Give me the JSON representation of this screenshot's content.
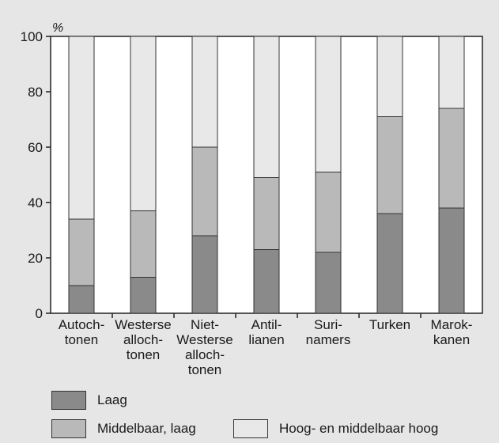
{
  "chart_data": {
    "type": "bar",
    "stacked": true,
    "unit_label": "%",
    "ylim": [
      0,
      100
    ],
    "yticks": [
      0,
      20,
      40,
      60,
      80,
      100
    ],
    "grid": false,
    "categories": [
      [
        "Autoch-",
        "tonen"
      ],
      [
        "Westerse",
        "alloch-",
        "tonen"
      ],
      [
        "Niet-",
        "Westerse",
        "alloch-",
        "tonen"
      ],
      [
        "Antil-",
        "lianen"
      ],
      [
        "Suri-",
        "namers"
      ],
      [
        "Turken"
      ],
      [
        "Marok-",
        "kanen"
      ]
    ],
    "series": [
      {
        "name": "Laag",
        "color": "#8a8a8a",
        "values": [
          10,
          13,
          28,
          23,
          22,
          36,
          38
        ]
      },
      {
        "name": "Middelbaar, laag",
        "color": "#b9b9b9",
        "values": [
          24,
          24,
          32,
          26,
          29,
          35,
          36
        ]
      },
      {
        "name": "Hoog- en middelbaar hoog",
        "color": "#e8e8e8",
        "values": [
          66,
          63,
          40,
          51,
          49,
          29,
          26
        ]
      }
    ],
    "legend_position": "bottom"
  }
}
